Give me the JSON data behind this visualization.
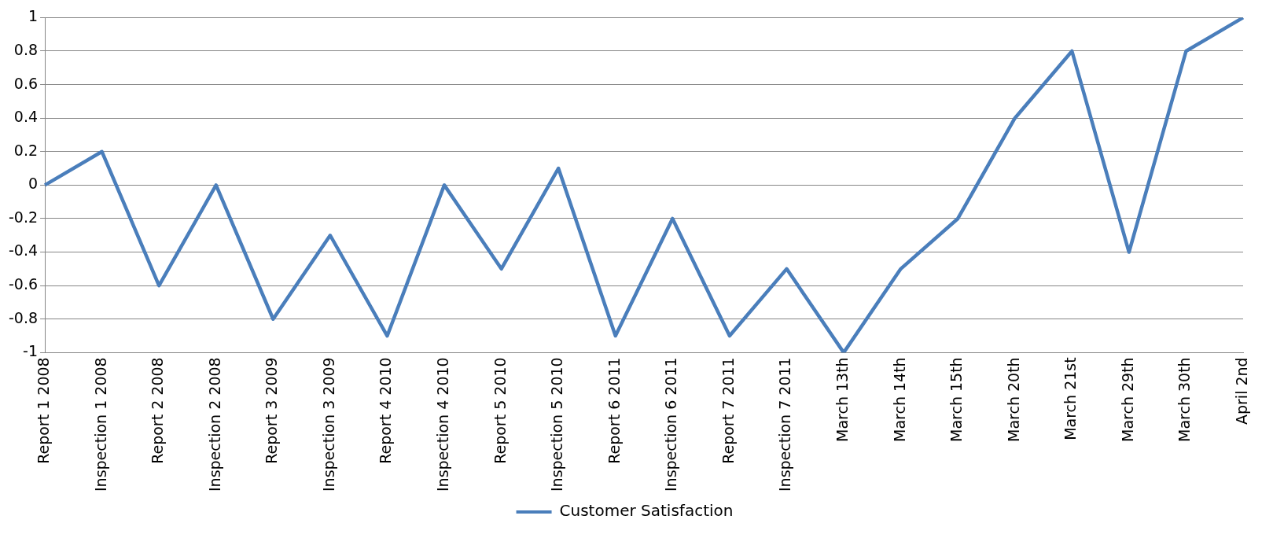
{
  "chart_data": {
    "type": "line",
    "categories": [
      "Report 1 2008",
      "Inspection 1 2008",
      "Report 2 2008",
      "Inspection 2 2008",
      "Report 3 2009",
      "Inspection 3 2009",
      "Report 4 2010",
      "Inspection 4 2010",
      "Report 5 2010",
      "Inspection 5 2010",
      "Report 6 2011",
      "Inspection 6 2011",
      "Report 7 2011",
      "Inspection 7 2011",
      "March 13th",
      "March 14th",
      "March 15th",
      "March 20th",
      "March 21st",
      "March 29th",
      "March 30th",
      "April 2nd"
    ],
    "series": [
      {
        "name": "Customer Satisfaction",
        "color": "#4a7ebb",
        "values": [
          0,
          0.2,
          -0.6,
          0,
          -0.8,
          -0.3,
          -0.9,
          0,
          -0.5,
          0.1,
          -0.9,
          -0.2,
          -0.9,
          -0.5,
          -1,
          -0.5,
          -0.2,
          0.4,
          0.8,
          -0.4,
          0.8,
          1
        ]
      }
    ],
    "ylim": [
      -1,
      1
    ],
    "yticks": [
      -1,
      -0.8,
      -0.6,
      -0.4,
      -0.2,
      0,
      0.2,
      0.4,
      0.6,
      0.8,
      1
    ],
    "grid": "y",
    "legend": "bottom",
    "marker": "none",
    "line_style": "solid"
  }
}
